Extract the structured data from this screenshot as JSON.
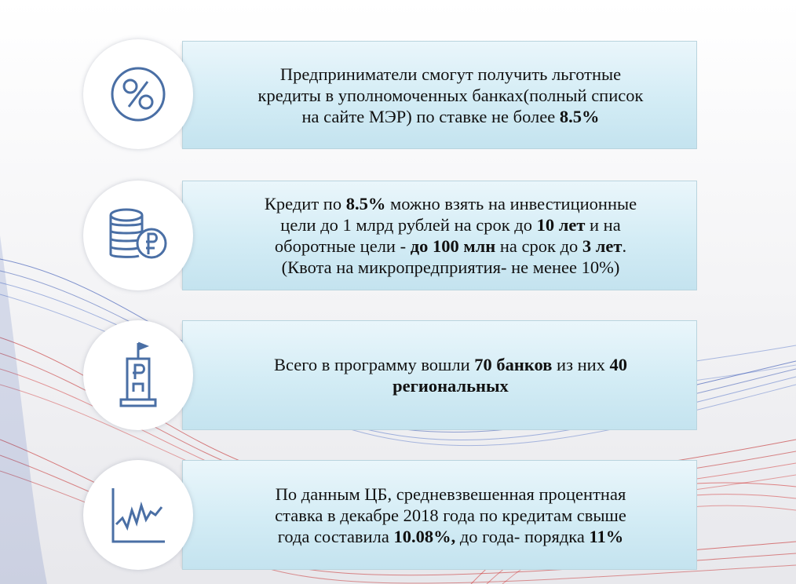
{
  "colors": {
    "icon_stroke": "#4a6fa5",
    "banner_top": "#eaf6fb",
    "banner_bottom": "#c4e3ef"
  },
  "cards": [
    {
      "icon": "percent-icon",
      "line1": "Предприниматели смогут получить льготные",
      "line2": "кредиты в уполномоченных банках(полный список",
      "line3_a": "на сайте МЭР) по ставке не более ",
      "line3_b": "8.5%"
    },
    {
      "icon": "coins-ruble-icon",
      "l1_a": "Кредит по ",
      "l1_b": "8.5%",
      "l1_c": " можно взять на инвестиционные",
      "l2_a": "цели до 1 млрд рублей на срок до ",
      "l2_b": "10 лет",
      "l2_c": " и на",
      "l3_a": "оборотные цели - ",
      "l3_b": "до 100 млн",
      "l3_c": " на срок до ",
      "l3_d": "3 лет",
      "l3_e": ".",
      "l4": "(Квота на микропредприятия- не менее 10%)"
    },
    {
      "icon": "bank-building-icon",
      "l1_a": "Всего в программу вошли ",
      "l1_b": "70 банков",
      "l1_c": " из них ",
      "l1_d": "40",
      "l2_b": "региональных"
    },
    {
      "icon": "chart-line-icon",
      "l1": "По данным ЦБ, средневзвешенная процентная",
      "l2": "ставка в декабре 2018 года по кредитам свыше",
      "l3_a": "года составила ",
      "l3_b": "10.08%,",
      "l3_c": " до года- порядка ",
      "l3_d": "11%"
    }
  ]
}
